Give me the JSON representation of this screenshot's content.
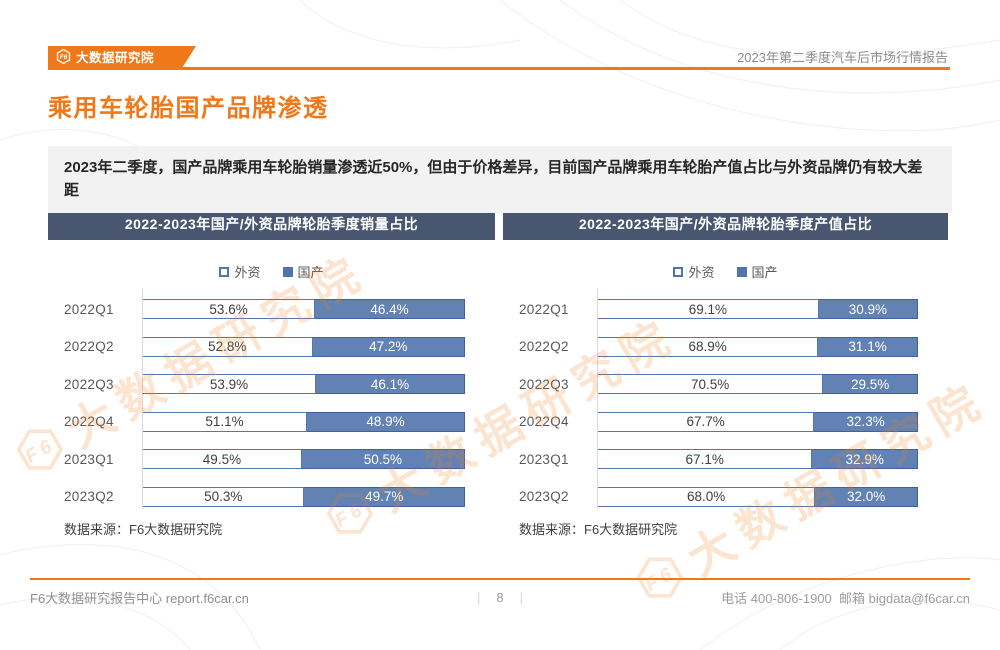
{
  "colors": {
    "accent": "#f07818",
    "panel_header": "#485670",
    "bar_domestic_fill": "#6282b4",
    "bar_domestic_border": "#3f61a0",
    "bar_foreign_border": "#5577ad",
    "summary_bg": "#f2f2f2"
  },
  "header": {
    "logo_badge": "F6",
    "logo_text": "大数据研究院",
    "report_title": "2023年第二季度汽车后市场行情报告"
  },
  "page": {
    "title": "乘用车轮胎国产品牌渗透",
    "summary": "2023年二季度，国产品牌乘用车轮胎销量渗透近50%，但由于价格差异，目前国产品牌乘用车轮胎产值占比与外资品牌仍有较大差距"
  },
  "legend": {
    "foreign": "外资",
    "domestic": "国产"
  },
  "chart_data": [
    {
      "type": "bar",
      "orientation": "horizontal-stacked",
      "title": "2022-2023年国产/外资品牌轮胎季度销量占比",
      "categories": [
        "2022Q1",
        "2022Q2",
        "2022Q3",
        "2022Q4",
        "2023Q1",
        "2023Q2"
      ],
      "series": [
        {
          "name": "外资",
          "values": [
            53.6,
            52.8,
            53.9,
            51.1,
            49.5,
            50.3
          ]
        },
        {
          "name": "国产",
          "values": [
            46.4,
            47.2,
            46.1,
            48.9,
            50.5,
            49.7
          ]
        }
      ],
      "unit": "%",
      "xlim": [
        0,
        100
      ],
      "legend_position": "top",
      "source": "数据来源：F6大数据研究院"
    },
    {
      "type": "bar",
      "orientation": "horizontal-stacked",
      "title": "2022-2023年国产/外资品牌轮胎季度产值占比",
      "categories": [
        "2022Q1",
        "2022Q2",
        "2022Q3",
        "2022Q4",
        "2023Q1",
        "2023Q2"
      ],
      "series": [
        {
          "name": "外资",
          "values": [
            69.1,
            68.9,
            70.5,
            67.7,
            67.1,
            68.0
          ]
        },
        {
          "name": "国产",
          "values": [
            30.9,
            31.1,
            29.5,
            32.3,
            32.9,
            32.0
          ]
        }
      ],
      "unit": "%",
      "xlim": [
        0,
        100
      ],
      "legend_position": "top",
      "source": "数据来源：F6大数据研究院"
    }
  ],
  "footer": {
    "left": "F6大数据研究报告中心 report.f6car.cn",
    "page_number": "8",
    "phone_label": "电话",
    "phone": "400-806-1900",
    "email_label": "邮箱",
    "email": "bigdata@f6car.cn"
  },
  "watermark": {
    "badge": "F6",
    "text": "大数据研究院"
  }
}
